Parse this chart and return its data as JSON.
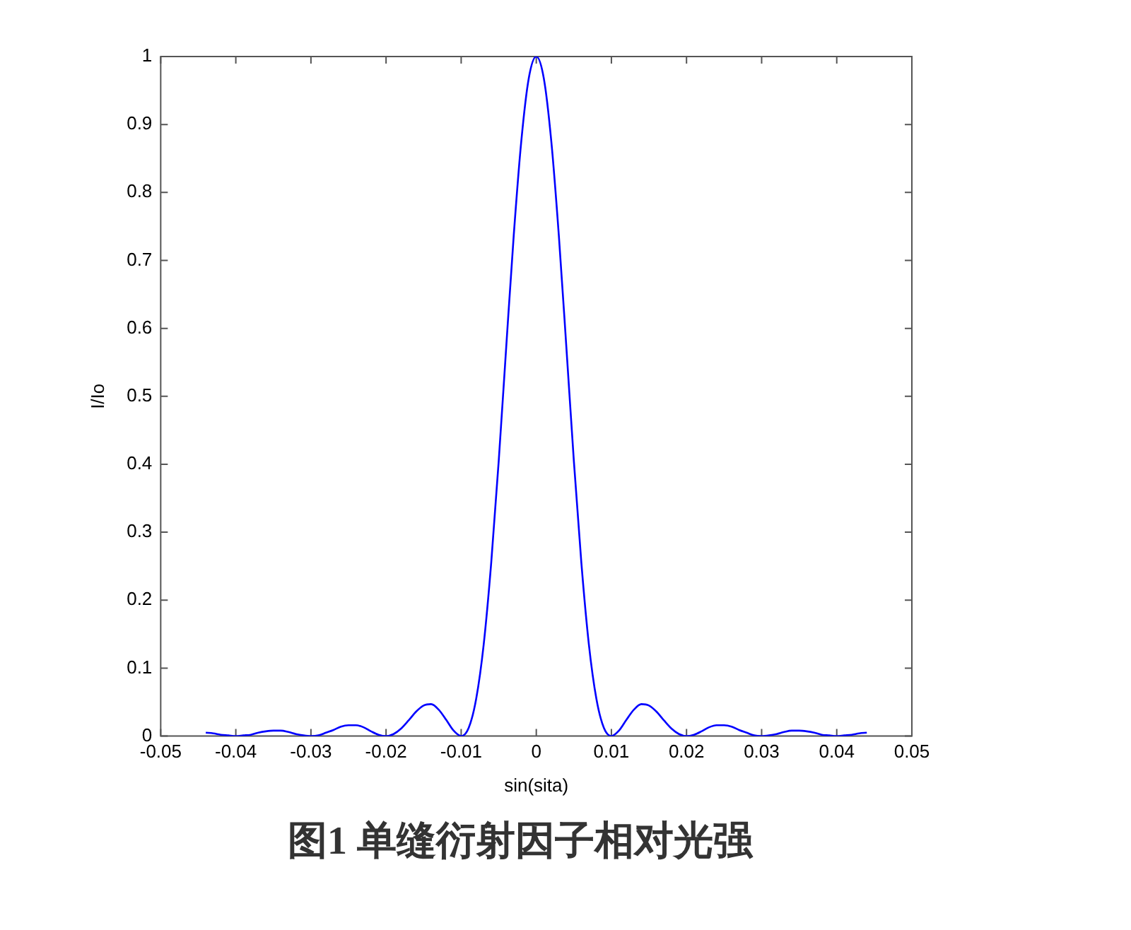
{
  "chart_data": {
    "type": "line",
    "xlabel": "sin(sita)",
    "ylabel": "I/Io",
    "annotations": [
      "图1  单缝衍射因子相对光强"
    ],
    "x": [
      -0.044,
      -0.043,
      -0.042,
      -0.041,
      -0.04,
      -0.039,
      -0.038,
      -0.037,
      -0.036,
      -0.035,
      -0.034,
      -0.033,
      -0.032,
      -0.031,
      -0.03,
      -0.029,
      -0.028,
      -0.027,
      -0.026,
      -0.025,
      -0.024,
      -0.023,
      -0.022,
      -0.021,
      -0.02,
      -0.019,
      -0.018,
      -0.017,
      -0.016,
      -0.015,
      -0.014,
      -0.013,
      -0.012,
      -0.011,
      -0.01,
      -0.009,
      -0.008,
      -0.007,
      -0.006,
      -0.005,
      -0.004,
      -0.003,
      -0.002,
      -0.001,
      0,
      0.001,
      0.002,
      0.003,
      0.004,
      0.005,
      0.006,
      0.007,
      0.008,
      0.009,
      0.01,
      0.011,
      0.012,
      0.013,
      0.014,
      0.015,
      0.016,
      0.017,
      0.018,
      0.019,
      0.02,
      0.021,
      0.022,
      0.023,
      0.024,
      0.025,
      0.026,
      0.027,
      0.028,
      0.029,
      0.03,
      0.031,
      0.032,
      0.033,
      0.034,
      0.035,
      0.036,
      0.037,
      0.038,
      0.039,
      0.04,
      0.041,
      0.042,
      0.043,
      0.044
    ],
    "series": [
      {
        "color": "#0000ff",
        "values": [
          0.005,
          0.004,
          0.002,
          0.001,
          0,
          0.001,
          0.002,
          0.005,
          0.007,
          0.008,
          0.008,
          0.006,
          0.003,
          0.001,
          0,
          0.001,
          0.005,
          0.009,
          0.014,
          0.016,
          0.016,
          0.013,
          0.007,
          0.002,
          0,
          0.003,
          0.011,
          0.023,
          0.036,
          0.045,
          0.047,
          0.039,
          0.024,
          0.008,
          0,
          0.012,
          0.055,
          0.135,
          0.255,
          0.405,
          0.573,
          0.737,
          0.875,
          0.968,
          1,
          0.968,
          0.875,
          0.737,
          0.573,
          0.405,
          0.255,
          0.135,
          0.055,
          0.012,
          0,
          0.008,
          0.024,
          0.039,
          0.047,
          0.045,
          0.036,
          0.023,
          0.011,
          0.003,
          0,
          0.002,
          0.007,
          0.013,
          0.016,
          0.016,
          0.014,
          0.009,
          0.005,
          0.001,
          0,
          0.001,
          0.003,
          0.006,
          0.008,
          0.008,
          0.007,
          0.005,
          0.002,
          0.001,
          0,
          0.001,
          0.002,
          0.004,
          0.005
        ]
      }
    ],
    "xlim": [
      -0.05,
      0.05
    ],
    "xticks": [
      -0.05,
      -0.04,
      -0.03,
      -0.02,
      -0.01,
      0,
      0.01,
      0.02,
      0.03,
      0.04,
      0.05
    ],
    "ylim": [
      0,
      1
    ],
    "yticks": [
      0,
      0.1,
      0.2,
      0.3,
      0.4,
      0.5,
      0.6,
      0.7,
      0.8,
      0.9,
      1
    ],
    "grid": false,
    "legend": false,
    "marker": "none",
    "line_style": "solid"
  }
}
